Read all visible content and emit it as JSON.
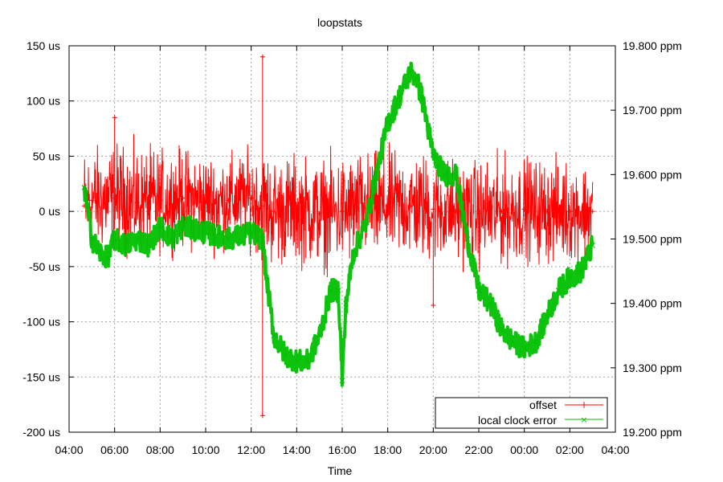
{
  "chart_data": {
    "type": "line",
    "title": "loopstats",
    "xlabel": "Time",
    "ylabel": "",
    "y2label": "",
    "x_ticks": [
      "04:00",
      "06:00",
      "08:00",
      "10:00",
      "12:00",
      "14:00",
      "16:00",
      "18:00",
      "20:00",
      "22:00",
      "00:00",
      "02:00",
      "04:00"
    ],
    "xlim": [
      "04:00",
      "04:00 (+1 day)"
    ],
    "y_ticks": [
      "150 us",
      "100 us",
      "50 us",
      "0 us",
      "-50 us",
      "-100 us",
      "-150 us",
      "-200 us"
    ],
    "ylim": [
      -200,
      150
    ],
    "y2_ticks": [
      "19.800 ppm",
      "19.700 ppm",
      "19.600 ppm",
      "19.500 ppm",
      "19.400 ppm",
      "19.300 ppm",
      "19.200 ppm"
    ],
    "y2lim": [
      19.2,
      19.8
    ],
    "grid": true,
    "legend_position": "bottom-right",
    "series": [
      {
        "name": "offset",
        "axis": "left",
        "color": "#ff0000",
        "marker": "+",
        "x": [
          "04:40",
          "05:00",
          "06:00",
          "07:00",
          "08:00",
          "09:00",
          "10:00",
          "11:00",
          "12:00",
          "12:30",
          "13:00",
          "14:00",
          "15:00",
          "16:00",
          "17:00",
          "18:00",
          "19:00",
          "20:00",
          "21:00",
          "22:00",
          "23:00",
          "00:00",
          "01:00",
          "02:00",
          "03:00"
        ],
        "values": [
          5,
          10,
          12,
          8,
          10,
          12,
          8,
          10,
          12,
          5,
          0,
          2,
          -2,
          0,
          3,
          5,
          5,
          2,
          0,
          -2,
          0,
          2,
          0,
          0,
          0
        ],
        "band_low": [
          -55,
          -50,
          -50,
          -50,
          -45,
          -45,
          -45,
          -40,
          -45,
          -60,
          -60,
          -60,
          -60,
          -60,
          -55,
          -55,
          -55,
          -55,
          -55,
          -55,
          -55,
          -50,
          -50,
          -50,
          -45
        ],
        "band_high": [
          80,
          70,
          75,
          75,
          70,
          70,
          70,
          65,
          65,
          70,
          65,
          65,
          65,
          70,
          70,
          70,
          70,
          70,
          65,
          65,
          70,
          70,
          70,
          65,
          65
        ],
        "extremes": [
          {
            "x": "12:30",
            "y": 140
          },
          {
            "x": "12:30",
            "y": -185
          },
          {
            "x": "06:00",
            "y": 85
          },
          {
            "x": "20:00",
            "y": -85
          }
        ]
      },
      {
        "name": "local clock error",
        "axis": "right",
        "color": "#00c000",
        "marker": "x",
        "x": [
          "04:40",
          "05:00",
          "05:20",
          "05:40",
          "06:00",
          "06:30",
          "07:00",
          "07:30",
          "08:00",
          "08:30",
          "09:00",
          "10:00",
          "11:00",
          "12:00",
          "12:30",
          "12:40",
          "13:00",
          "13:30",
          "14:00",
          "14:30",
          "15:00",
          "15:30",
          "15:50",
          "16:00",
          "16:10",
          "16:30",
          "17:00",
          "17:30",
          "18:00",
          "18:30",
          "19:00",
          "19:15",
          "19:30",
          "20:00",
          "20:30",
          "21:00",
          "21:30",
          "22:00",
          "22:30",
          "23:00",
          "23:30",
          "00:00",
          "00:30",
          "01:00",
          "01:30",
          "02:00",
          "02:30",
          "03:00"
        ],
        "values": [
          19.58,
          19.5,
          19.48,
          19.47,
          19.5,
          19.49,
          19.5,
          19.49,
          19.52,
          19.5,
          19.52,
          19.51,
          19.5,
          19.51,
          19.5,
          19.44,
          19.35,
          19.32,
          19.31,
          19.31,
          19.35,
          19.42,
          19.42,
          19.28,
          19.4,
          19.48,
          19.52,
          19.6,
          19.68,
          19.72,
          19.76,
          19.75,
          19.72,
          19.63,
          19.6,
          19.6,
          19.5,
          19.42,
          19.4,
          19.36,
          19.34,
          19.33,
          19.34,
          19.38,
          19.42,
          19.44,
          19.45,
          19.49
        ]
      }
    ]
  }
}
